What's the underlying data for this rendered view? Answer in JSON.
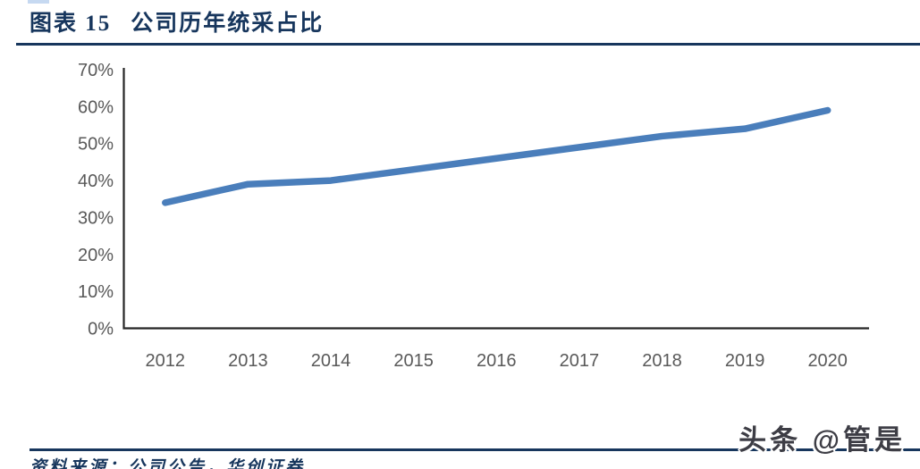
{
  "header": {
    "figure_label": "图表 15",
    "title": "公司历年统采占比",
    "accent_color": "#17365D"
  },
  "chart_data": {
    "type": "line",
    "title": "公司历年统采占比",
    "categories": [
      "2012",
      "2013",
      "2014",
      "2015",
      "2016",
      "2017",
      "2018",
      "2019",
      "2020"
    ],
    "values": [
      34,
      39,
      40,
      43,
      46,
      49,
      52,
      54,
      59
    ],
    "unit": "%",
    "ylim": [
      0,
      70
    ],
    "y_tick_step": 10,
    "y_tick_labels": [
      "0%",
      "10%",
      "20%",
      "30%",
      "40%",
      "50%",
      "60%",
      "70%"
    ],
    "grid": false,
    "legend": false,
    "line_color": "#4A7EBB",
    "axis_color": "#262626",
    "tick_label_color": "#595959"
  },
  "footer": {
    "source_text": "资料来源：公司公告，华创证券",
    "watermark": "头条 @管是"
  }
}
